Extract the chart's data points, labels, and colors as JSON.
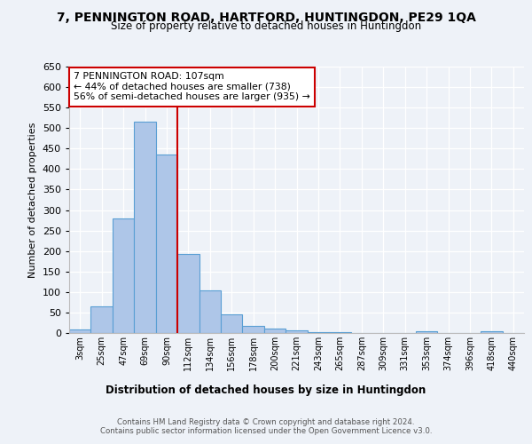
{
  "title": "7, PENNINGTON ROAD, HARTFORD, HUNTINGDON, PE29 1QA",
  "subtitle": "Size of property relative to detached houses in Huntingdon",
  "xlabel": "Distribution of detached houses by size in Huntingdon",
  "ylabel": "Number of detached properties",
  "bar_labels": [
    "3sqm",
    "25sqm",
    "47sqm",
    "69sqm",
    "90sqm",
    "112sqm",
    "134sqm",
    "156sqm",
    "178sqm",
    "200sqm",
    "221sqm",
    "243sqm",
    "265sqm",
    "287sqm",
    "309sqm",
    "331sqm",
    "353sqm",
    "374sqm",
    "396sqm",
    "418sqm",
    "440sqm"
  ],
  "bar_heights": [
    8,
    65,
    280,
    515,
    435,
    192,
    103,
    45,
    18,
    11,
    6,
    3,
    3,
    0,
    0,
    0,
    5,
    0,
    0,
    5,
    0
  ],
  "bar_color": "#aec6e8",
  "bar_edge_color": "#5a9fd4",
  "vline_x": 4.5,
  "vline_color": "#cc0000",
  "annotation_text": "7 PENNINGTON ROAD: 107sqm\n← 44% of detached houses are smaller (738)\n56% of semi-detached houses are larger (935) →",
  "annotation_box_color": "#ffffff",
  "annotation_box_edge": "#cc0000",
  "ylim": [
    0,
    650
  ],
  "yticks": [
    0,
    50,
    100,
    150,
    200,
    250,
    300,
    350,
    400,
    450,
    500,
    550,
    600,
    650
  ],
  "footer_line1": "Contains HM Land Registry data © Crown copyright and database right 2024.",
  "footer_line2": "Contains public sector information licensed under the Open Government Licence v3.0.",
  "bg_color": "#eef2f8",
  "plot_bg_color": "#eef2f8"
}
